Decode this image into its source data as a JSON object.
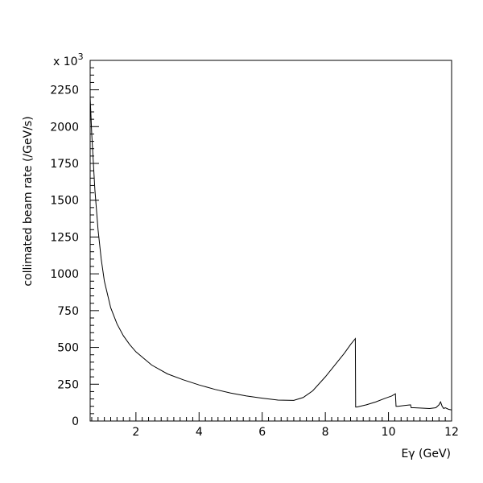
{
  "chart_data": {
    "type": "line",
    "title": "",
    "xlabel": "Eγ (GeV)",
    "ylabel": "collimated beam rate (/GeV/s)",
    "y_multiplier_label": "x 10",
    "y_multiplier_exponent": "3",
    "xlim": [
      0.55,
      12
    ],
    "ylim": [
      0,
      2450
    ],
    "x_ticks": [
      2,
      4,
      6,
      8,
      10,
      12
    ],
    "x_tick_labels": [
      "2",
      "4",
      "6",
      "8",
      "10",
      "12"
    ],
    "y_ticks": [
      0,
      250,
      500,
      750,
      1000,
      1250,
      1500,
      1750,
      2000,
      2250
    ],
    "y_tick_labels": [
      "0",
      "250",
      "500",
      "750",
      "1000",
      "1250",
      "1500",
      "1750",
      "2000",
      "2250"
    ],
    "grid": false,
    "legend": "none",
    "line_color": "#000000",
    "series": [
      {
        "x": [
          0.55,
          0.6,
          0.7,
          0.8,
          0.9,
          1.0,
          1.2,
          1.4,
          1.6,
          1.8,
          2.0,
          2.5,
          3.0,
          3.5,
          4.0,
          4.5,
          5.0,
          5.5,
          6.0,
          6.5,
          7.0,
          7.3,
          7.6,
          8.0,
          8.3,
          8.6,
          8.8,
          8.95,
          8.96,
          9.0,
          9.3,
          9.6,
          9.9,
          10.1,
          10.22,
          10.24,
          10.3,
          10.5,
          10.7,
          10.72,
          10.8,
          11.0,
          11.3,
          11.5,
          11.6,
          11.65,
          11.7,
          11.75,
          11.8,
          11.9,
          12.0
        ],
        "y": [
          2200,
          1950,
          1570,
          1300,
          1100,
          950,
          770,
          660,
          580,
          520,
          470,
          380,
          320,
          280,
          245,
          215,
          190,
          170,
          155,
          142,
          140,
          160,
          205,
          300,
          380,
          460,
          520,
          560,
          95,
          95,
          110,
          130,
          155,
          170,
          185,
          100,
          100,
          105,
          110,
          90,
          90,
          88,
          85,
          90,
          110,
          130,
          100,
          85,
          90,
          80,
          75
        ]
      }
    ]
  }
}
